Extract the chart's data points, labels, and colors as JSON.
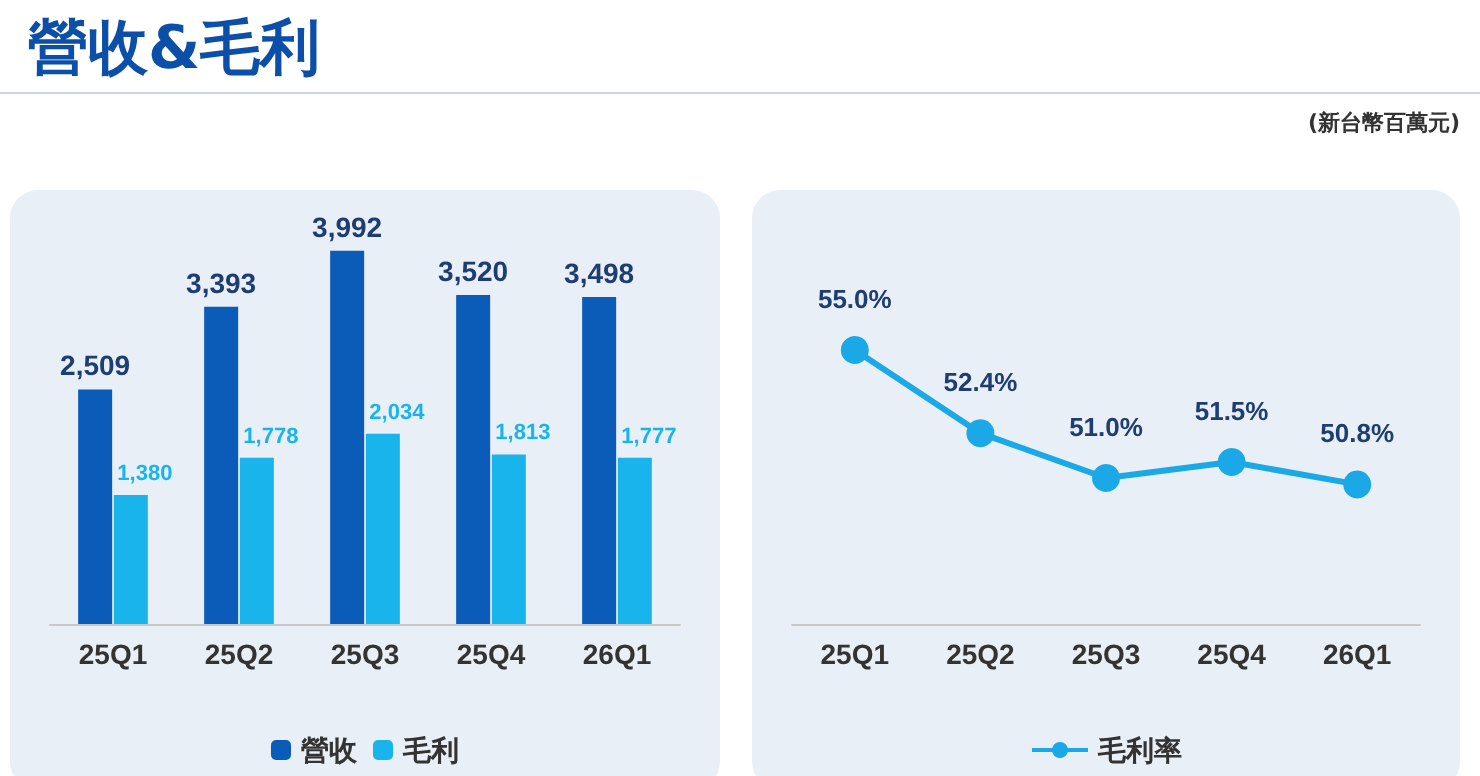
{
  "chart_data": [
    {
      "type": "bar",
      "title": "營收&毛利",
      "annotations": [
        "(新台幣百萬元)"
      ],
      "categories": [
        "25Q1",
        "25Q2",
        "25Q3",
        "25Q4",
        "26Q1"
      ],
      "series": [
        {
          "name": "營收",
          "color": "#0b5cb8",
          "values": [
            2509,
            3393,
            3992,
            3520,
            3498
          ],
          "value_labels": [
            "2,509",
            "3,393",
            "3,992",
            "3,520",
            "3,498"
          ]
        },
        {
          "name": "毛利",
          "color": "#1ab4ec",
          "values": [
            1380,
            1778,
            2034,
            1813,
            1777
          ],
          "value_labels": [
            "1,380",
            "1,778",
            "2,034",
            "1,813",
            "1,777"
          ]
        }
      ],
      "legend": "bottom",
      "grid": false
    },
    {
      "type": "line",
      "categories": [
        "25Q1",
        "25Q2",
        "25Q3",
        "25Q4",
        "26Q1"
      ],
      "series": [
        {
          "name": "毛利率",
          "color": "#1aa8e6",
          "values": [
            55.0,
            52.4,
            51.0,
            51.5,
            50.8
          ],
          "value_labels": [
            "55.0%",
            "52.4%",
            "51.0%",
            "51.5%",
            "50.8%"
          ]
        }
      ],
      "legend": "bottom",
      "grid": false,
      "marker": "circle",
      "line_style": "solid"
    }
  ]
}
